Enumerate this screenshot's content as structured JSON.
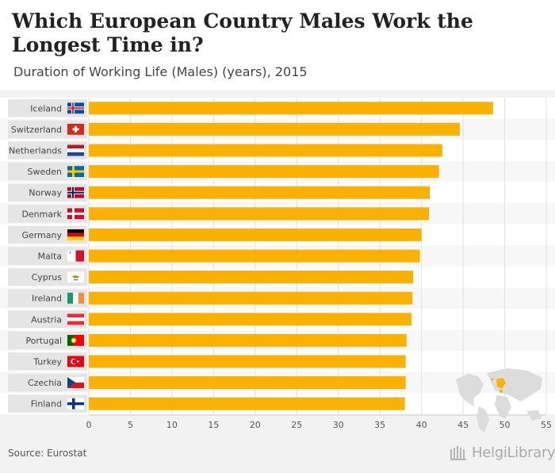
{
  "header": {
    "title": "Which European Country Males Work the Longest Time in?",
    "subtitle": "Duration of Working Life (Males) (years), 2015"
  },
  "footer": {
    "source": "Source: Eurostat",
    "logo": "HelgiLibrary."
  },
  "colors": {
    "bar": "#fbb101",
    "label_bg": "#e5e5e5",
    "grid": "#e2e2e2"
  },
  "chart_data": {
    "type": "bar",
    "orientation": "horizontal",
    "title": "Which European Country Males Work the Longest Time in?",
    "subtitle": "Duration of Working Life (Males) (years), 2015",
    "categories": [
      "Iceland",
      "Switzerland",
      "Netherlands",
      "Sweden",
      "Norway",
      "Denmark",
      "Germany",
      "Malta",
      "Cyprus",
      "Ireland",
      "Austria",
      "Portugal",
      "Turkey",
      "Czechia",
      "Finland"
    ],
    "flags": [
      "iceland-flag-icon",
      "switzerland-flag-icon",
      "netherlands-flag-icon",
      "sweden-flag-icon",
      "norway-flag-icon",
      "denmark-flag-icon",
      "germany-flag-icon",
      "malta-flag-icon",
      "cyprus-flag-icon",
      "ireland-flag-icon",
      "austria-flag-icon",
      "portugal-flag-icon",
      "turkey-flag-icon",
      "czechia-flag-icon",
      "finland-flag-icon"
    ],
    "values": [
      48.6,
      44.6,
      42.5,
      42.1,
      41.0,
      40.9,
      40.0,
      39.8,
      39.0,
      38.9,
      38.8,
      38.2,
      38.1,
      38.1,
      38.0
    ],
    "xlim": [
      0,
      55
    ],
    "xticks": [
      "0",
      "5",
      "10",
      "15",
      "20",
      "25",
      "30",
      "35",
      "40",
      "45",
      "50",
      "55"
    ],
    "xlabel": "",
    "ylabel": "",
    "grid": true
  }
}
